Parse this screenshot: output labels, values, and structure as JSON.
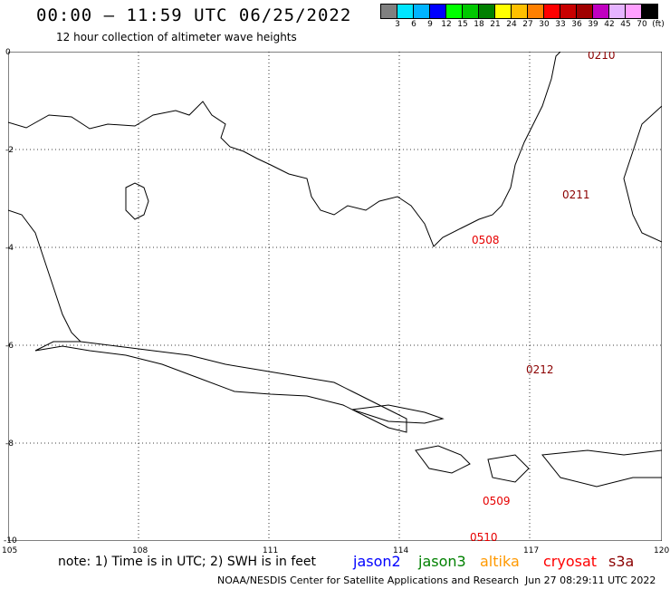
{
  "header": {
    "title": "00:00 – 11:59 UTC 06/25/2022",
    "subtitle": "12 hour collection of altimeter wave heights"
  },
  "legend": {
    "colors": [
      "#808080",
      "#00e5ff",
      "#00b4ff",
      "#0000ff",
      "#00ff00",
      "#00c800",
      "#008000",
      "#ffff00",
      "#ffc000",
      "#ff8000",
      "#ff0000",
      "#c80000",
      "#a00000",
      "#c000c0",
      "#e6b4ff",
      "#ffa0ff",
      "#000000"
    ],
    "labels": [
      "3",
      "6",
      "9",
      "12",
      "15",
      "18",
      "21",
      "24",
      "27",
      "30",
      "33",
      "36",
      "39",
      "42",
      "45",
      "70",
      "(ft)"
    ]
  },
  "axes": {
    "y_labels": [
      "0",
      "-2",
      "-4",
      "-6",
      "-8",
      "-10"
    ],
    "x_labels": [
      "105",
      "108",
      "111",
      "114",
      "117",
      "120"
    ]
  },
  "passes": [
    {
      "label": "0210",
      "color": "#8b0000"
    },
    {
      "label": "0211",
      "color": "#8b0000"
    },
    {
      "label": "0212",
      "color": "#8b0000"
    },
    {
      "label": "0508",
      "color": "#e60000"
    },
    {
      "label": "0509",
      "color": "#e60000"
    },
    {
      "label": "0510",
      "color": "#e60000"
    }
  ],
  "footer": {
    "note": "note: 1) Time is in UTC; 2) SWH is in feet",
    "satellites": [
      {
        "name": "jason2",
        "color": "#0000ff"
      },
      {
        "name": "jason3",
        "color": "#008000"
      },
      {
        "name": "altika",
        "color": "#ff9900"
      },
      {
        "name": "cryosat",
        "color": "#ff0000"
      },
      {
        "name": "s3a",
        "color": "#8b0000"
      }
    ],
    "credit": "NOAA/NESDIS Center for Satellite Applications and Research",
    "timestamp": "Jun 27 08:29:11 UTC 2022"
  }
}
